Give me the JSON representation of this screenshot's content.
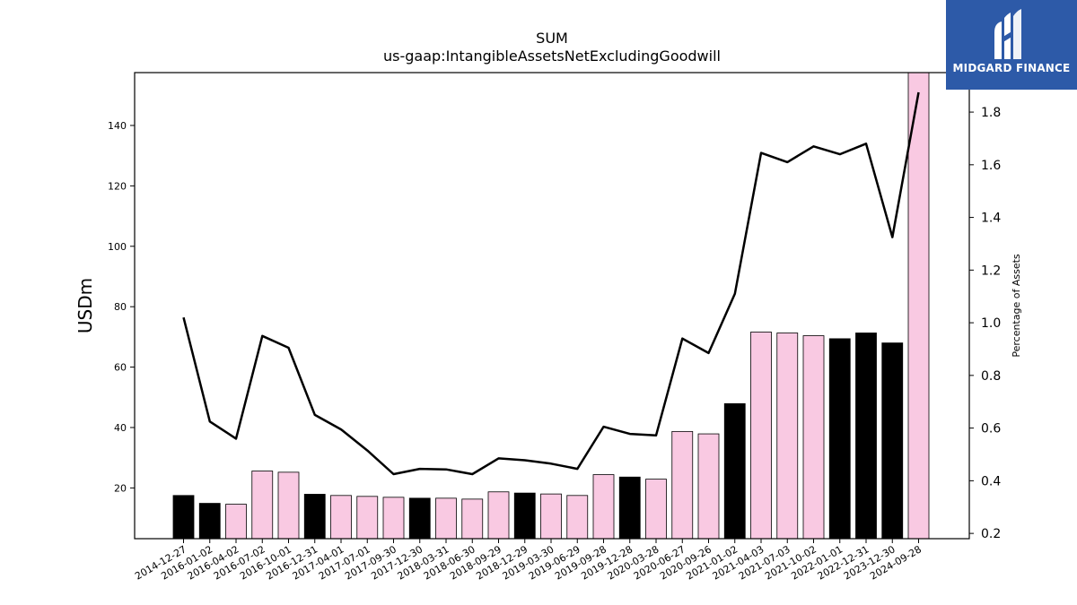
{
  "chart_data": {
    "type": "bar",
    "title": "SUM",
    "subtitle": "us-gaap:IntangibleAssetsNetExcludingGoodwill",
    "ylabel": "USDm",
    "y2label": "Percentage of Assets",
    "ylim": [
      3.2,
      157.5
    ],
    "y2lim": [
      0.18,
      1.95
    ],
    "yticks": [
      20,
      40,
      60,
      80,
      100,
      120,
      140
    ],
    "y2ticks": [
      0.2,
      0.4,
      0.6,
      0.8,
      1.0,
      1.2,
      1.4,
      1.6,
      1.8
    ],
    "categories": [
      "2014-12-27",
      "2016-01-02",
      "2016-04-02",
      "2016-07-02",
      "2016-10-01",
      "2016-12-31",
      "2017-04-01",
      "2017-07-01",
      "2017-09-30",
      "2017-12-30",
      "2018-03-31",
      "2018-06-30",
      "2018-09-29",
      "2018-12-29",
      "2019-03-30",
      "2019-06-29",
      "2019-09-28",
      "2019-12-28",
      "2020-03-28",
      "2020-06-27",
      "2020-09-26",
      "2021-01-02",
      "2021-04-03",
      "2021-07-03",
      "2021-10-02",
      "2022-01-01",
      "2022-12-31",
      "2023-12-30",
      "2024-09-28"
    ],
    "series": [
      {
        "type": "bar",
        "values": [
          17.5,
          14.9,
          14.6,
          25.6,
          25.2,
          17.9,
          17.5,
          17.2,
          16.9,
          16.6,
          16.6,
          16.3,
          18.7,
          18.3,
          18.0,
          17.5,
          24.4,
          23.6,
          22.9,
          38.7,
          37.9,
          47.9,
          71.6,
          71.3,
          70.4,
          69.4,
          71.3,
          68.0,
          157.5
        ],
        "colors": [
          "#000000",
          "#000000",
          "#f9c9e2",
          "#f9c9e2",
          "#f9c9e2",
          "#000000",
          "#f9c9e2",
          "#f9c9e2",
          "#f9c9e2",
          "#000000",
          "#f9c9e2",
          "#f9c9e2",
          "#f9c9e2",
          "#000000",
          "#f9c9e2",
          "#f9c9e2",
          "#f9c9e2",
          "#000000",
          "#f9c9e2",
          "#f9c9e2",
          "#f9c9e2",
          "#000000",
          "#f9c9e2",
          "#f9c9e2",
          "#f9c9e2",
          "#000000",
          "#000000",
          "#000000",
          "#f9c9e2"
        ]
      },
      {
        "type": "line",
        "axis": "right",
        "color": "#000000",
        "values": [
          1.02,
          0.625,
          0.56,
          0.95,
          0.905,
          0.65,
          0.595,
          0.515,
          0.425,
          0.445,
          0.443,
          0.425,
          0.485,
          0.478,
          0.465,
          0.445,
          0.605,
          0.578,
          0.572,
          0.94,
          0.885,
          1.11,
          1.645,
          1.61,
          1.67,
          1.64,
          1.68,
          1.325,
          1.875
        ]
      }
    ],
    "grid": false
  },
  "logo": {
    "text": "MIDGARD FINANCE",
    "background": "#2d5aa8"
  }
}
